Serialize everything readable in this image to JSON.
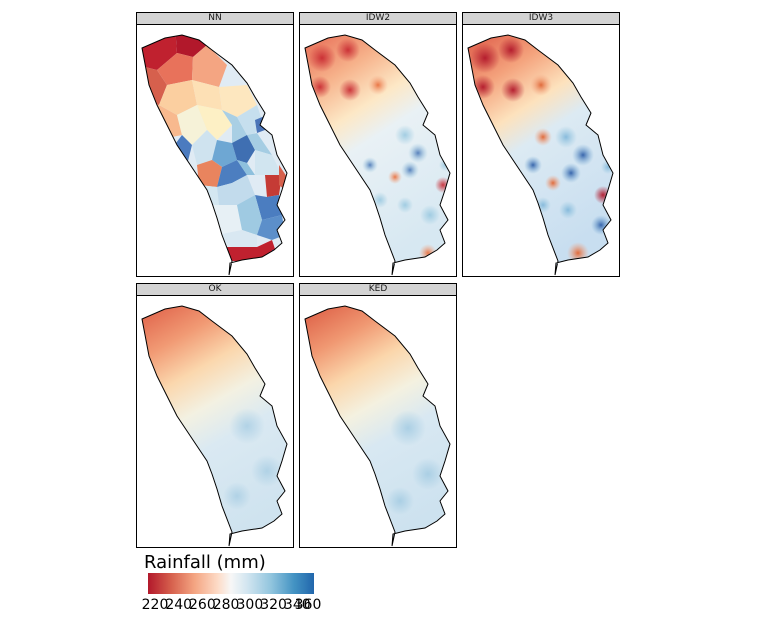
{
  "panels": [
    {
      "id": "nn",
      "label": "NN"
    },
    {
      "id": "idw2",
      "label": "IDW2"
    },
    {
      "id": "idw3",
      "label": "IDW3"
    },
    {
      "id": "ok",
      "label": "OK"
    },
    {
      "id": "ked",
      "label": "KED"
    }
  ],
  "legend": {
    "title": "Rainfall (mm)",
    "min": 220,
    "max": 360,
    "ticks": [
      "220",
      "240",
      "260",
      "280",
      "300",
      "320",
      "340",
      "360"
    ],
    "palette": [
      "#b2182b",
      "#d6604d",
      "#f4a582",
      "#fddbc7",
      "#f7f7f7",
      "#d1e5f0",
      "#92c5de",
      "#4393c3",
      "#2166ac"
    ]
  }
}
